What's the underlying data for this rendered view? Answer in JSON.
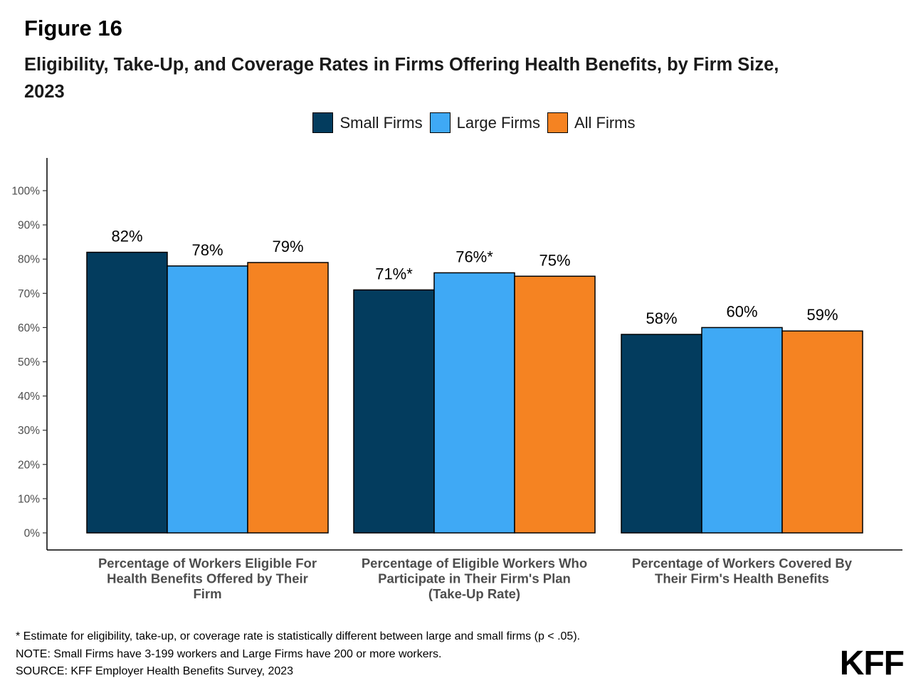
{
  "figure_label": "Figure 16",
  "title": "Eligibility, Take-Up, and Coverage Rates in Firms Offering Health Benefits, by Firm Size, 2023",
  "legend": [
    {
      "name": "Small Firms",
      "color": "#033C5E"
    },
    {
      "name": "Large Firms",
      "color": "#3FA9F5"
    },
    {
      "name": "All Firms",
      "color": "#F58322"
    }
  ],
  "chart_data": {
    "type": "bar",
    "categories": [
      [
        "Percentage of Workers Eligible For",
        "Health Benefits Offered by Their",
        "Firm"
      ],
      [
        "Percentage of Eligible Workers Who",
        "Participate in Their Firm's Plan",
        "(Take-Up Rate)"
      ],
      [
        "Percentage of Workers Covered By",
        "Their Firm's Health Benefits"
      ]
    ],
    "series": [
      {
        "name": "Small Firms",
        "color": "#033C5E",
        "values": [
          82,
          71,
          58
        ],
        "labels": [
          "82%",
          "71%*",
          "58%"
        ]
      },
      {
        "name": "Large Firms",
        "color": "#3FA9F5",
        "values": [
          78,
          76,
          60
        ],
        "labels": [
          "78%",
          "76%*",
          "60%"
        ]
      },
      {
        "name": "All Firms",
        "color": "#F58322",
        "values": [
          79,
          75,
          59
        ],
        "labels": [
          "79%",
          "75%",
          "59%"
        ]
      }
    ],
    "yticks": [
      "0%",
      "10%",
      "20%",
      "30%",
      "40%",
      "50%",
      "60%",
      "70%",
      "80%",
      "90%",
      "100%"
    ],
    "ylim": [
      0,
      100
    ],
    "grid": false,
    "legend_position": "top"
  },
  "notes": [
    "* Estimate for eligibility, take-up, or coverage rate is statistically different between large and small firms (p < .05).",
    "NOTE: Small Firms have 3-199 workers and Large Firms have 200 or more workers.",
    "SOURCE: KFF Employer Health Benefits Survey, 2023"
  ],
  "logo": "KFF"
}
